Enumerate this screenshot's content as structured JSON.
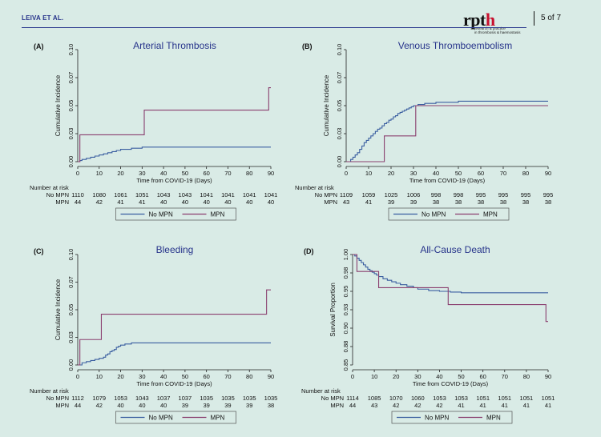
{
  "header": {
    "running_head": "LEIVA ET AL.",
    "page": "5 of 7",
    "logo_text": "rpth",
    "logo_sub": "research & practice in thrombosis & haemostasis"
  },
  "colors": {
    "no_mpn": "#3a5ea0",
    "mpn": "#8a3f6f",
    "panel_bg": "#d9ebe6"
  },
  "panels": {
    "a": {
      "letter": "(A)",
      "title": "Arterial Thrombosis",
      "ylabel": "Cumulative Incidence",
      "xlabel": "Time from COVID-19 (Days)",
      "yticks": [
        "0.00",
        "0.03",
        "0.05",
        "0.07",
        "0.10"
      ],
      "xticks": [
        "0",
        "10",
        "20",
        "30",
        "40",
        "50",
        "60",
        "70",
        "80",
        "90"
      ],
      "risk_header": "Number at risk",
      "row1_label": "No MPN",
      "row2_label": "MPN",
      "risk_no": [
        "1110",
        "1080",
        "1061",
        "1051",
        "1043",
        "1043",
        "1041",
        "1041",
        "1041",
        "1041"
      ],
      "risk_mpn": [
        "44",
        "42",
        "41",
        "41",
        "40",
        "40",
        "40",
        "40",
        "40",
        "40"
      ],
      "legend_no": "No MPN",
      "legend_mpn": "MPN"
    },
    "b": {
      "letter": "(B)",
      "title": "Venous Thromboembolism",
      "ylabel": "Cumulative Incidence",
      "xlabel": "Time from COVID-19 (Days)",
      "yticks": [
        "0.00",
        "0.03",
        "0.05",
        "0.07",
        "0.10"
      ],
      "xticks": [
        "0",
        "10",
        "20",
        "30",
        "40",
        "50",
        "60",
        "70",
        "80",
        "90"
      ],
      "risk_header": "Number at risk",
      "row1_label": "No MPN",
      "row2_label": "MPN",
      "risk_no": [
        "1109",
        "1059",
        "1025",
        "1006",
        "998",
        "998",
        "995",
        "995",
        "995",
        "995"
      ],
      "risk_mpn": [
        "43",
        "41",
        "39",
        "39",
        "38",
        "38",
        "38",
        "38",
        "38",
        "38"
      ],
      "legend_no": "No MPN",
      "legend_mpn": "MPN"
    },
    "c": {
      "letter": "(C)",
      "title": "Bleeding",
      "ylabel": "Cumulative Incidence",
      "xlabel": "Time from COVID-19 (Days)",
      "yticks": [
        "0.00",
        "0.03",
        "0.05",
        "0.07",
        "0.10"
      ],
      "xticks": [
        "0",
        "10",
        "20",
        "30",
        "40",
        "50",
        "60",
        "70",
        "80",
        "90"
      ],
      "risk_header": "Number at risk",
      "row1_label": "No MPN",
      "row2_label": "MPN",
      "risk_no": [
        "1112",
        "1079",
        "1053",
        "1043",
        "1037",
        "1037",
        "1035",
        "1035",
        "1035",
        "1035"
      ],
      "risk_mpn": [
        "44",
        "42",
        "40",
        "40",
        "40",
        "39",
        "39",
        "39",
        "39",
        "38"
      ],
      "legend_no": "No MPN",
      "legend_mpn": "MPN"
    },
    "d": {
      "letter": "(D)",
      "title": "All-Cause Death",
      "ylabel": "Survival Proportion",
      "xlabel": "Time from COVID-19 (Days)",
      "yticks": [
        "0.85",
        "0.88",
        "0.90",
        "0.93",
        "0.95",
        "0.98",
        "1.00"
      ],
      "xticks": [
        "0",
        "10",
        "20",
        "30",
        "40",
        "50",
        "60",
        "70",
        "80",
        "90"
      ],
      "risk_header": "Number at risk",
      "row1_label": "No MPN",
      "row2_label": "MPN",
      "risk_no": [
        "1114",
        "1085",
        "1070",
        "1060",
        "1053",
        "1053",
        "1051",
        "1051",
        "1051",
        "1051"
      ],
      "risk_mpn": [
        "44",
        "43",
        "42",
        "42",
        "42",
        "41",
        "41",
        "41",
        "41",
        "41"
      ],
      "legend_no": "No MPN",
      "legend_mpn": "MPN"
    }
  },
  "chart_data": [
    {
      "type": "line",
      "panel": "a",
      "title": "Arterial Thrombosis",
      "xlabel": "Time from COVID-19 (Days)",
      "ylabel": "Cumulative Incidence",
      "xlim": [
        0,
        90
      ],
      "ylim": [
        0,
        0.1
      ],
      "step": true,
      "series": [
        {
          "name": "No MPN",
          "x": [
            0,
            1,
            2,
            4,
            6,
            8,
            10,
            12,
            14,
            16,
            18,
            20,
            22,
            25,
            27,
            30,
            40,
            60,
            90
          ],
          "y": [
            0,
            0.001,
            0.002,
            0.003,
            0.004,
            0.005,
            0.006,
            0.007,
            0.008,
            0.009,
            0.01,
            0.011,
            0.011,
            0.012,
            0.012,
            0.013,
            0.013,
            0.013,
            0.013
          ]
        },
        {
          "name": "MPN",
          "x": [
            0,
            1,
            31,
            89,
            90
          ],
          "y": [
            0,
            0.024,
            0.046,
            0.066,
            0.066
          ]
        }
      ]
    },
    {
      "type": "line",
      "panel": "b",
      "title": "Venous Thromboembolism",
      "xlabel": "Time from COVID-19 (Days)",
      "ylabel": "Cumulative Incidence",
      "xlim": [
        0,
        90
      ],
      "ylim": [
        0,
        0.1
      ],
      "step": true,
      "series": [
        {
          "name": "No MPN",
          "x": [
            0,
            2,
            3,
            4,
            5,
            6,
            7,
            8,
            9,
            10,
            11,
            12,
            13,
            14,
            15,
            16,
            17,
            18,
            19,
            20,
            21,
            22,
            23,
            24,
            25,
            26,
            27,
            28,
            29,
            30,
            32,
            35,
            40,
            50,
            90
          ],
          "y": [
            0,
            0.002,
            0.004,
            0.006,
            0.008,
            0.011,
            0.014,
            0.017,
            0.019,
            0.021,
            0.023,
            0.025,
            0.027,
            0.029,
            0.03,
            0.032,
            0.034,
            0.035,
            0.037,
            0.038,
            0.04,
            0.041,
            0.043,
            0.044,
            0.045,
            0.046,
            0.047,
            0.048,
            0.049,
            0.05,
            0.051,
            0.052,
            0.053,
            0.054,
            0.054
          ]
        },
        {
          "name": "MPN",
          "x": [
            0,
            17,
            31,
            90
          ],
          "y": [
            0,
            0.023,
            0.05,
            0.05
          ]
        }
      ]
    },
    {
      "type": "line",
      "panel": "c",
      "title": "Bleeding",
      "xlabel": "Time from COVID-19 (Days)",
      "ylabel": "Cumulative Incidence",
      "xlim": [
        0,
        90
      ],
      "ylim": [
        0,
        0.1
      ],
      "step": true,
      "series": [
        {
          "name": "No MPN",
          "x": [
            0,
            2,
            4,
            6,
            8,
            10,
            12,
            13,
            14,
            15,
            16,
            17,
            18,
            19,
            20,
            22,
            25,
            30,
            60,
            90
          ],
          "y": [
            0,
            0.002,
            0.003,
            0.004,
            0.005,
            0.006,
            0.007,
            0.009,
            0.01,
            0.012,
            0.013,
            0.014,
            0.016,
            0.017,
            0.018,
            0.019,
            0.02,
            0.02,
            0.02,
            0.02
          ]
        },
        {
          "name": "MPN",
          "x": [
            0,
            1,
            11,
            88,
            90
          ],
          "y": [
            0,
            0.023,
            0.046,
            0.068,
            0.068
          ]
        }
      ]
    },
    {
      "type": "line",
      "panel": "d",
      "title": "All-Cause Death",
      "xlabel": "Time from COVID-19 (Days)",
      "ylabel": "Survival Proportion",
      "xlim": [
        0,
        90
      ],
      "ylim": [
        0.85,
        1.0
      ],
      "step": true,
      "series": [
        {
          "name": "No MPN",
          "x": [
            0,
            1,
            2,
            3,
            4,
            5,
            6,
            7,
            8,
            9,
            10,
            11,
            12,
            14,
            16,
            18,
            20,
            22,
            25,
            28,
            30,
            35,
            40,
            45,
            50,
            60,
            90
          ],
          "y": [
            1.0,
            0.998,
            0.995,
            0.992,
            0.989,
            0.986,
            0.983,
            0.98,
            0.978,
            0.976,
            0.974,
            0.972,
            0.97,
            0.967,
            0.965,
            0.963,
            0.961,
            0.959,
            0.957,
            0.955,
            0.953,
            0.951,
            0.95,
            0.949,
            0.948,
            0.948,
            0.948
          ]
        },
        {
          "name": "MPN",
          "x": [
            0,
            2,
            12,
            44,
            89,
            90
          ],
          "y": [
            1.0,
            0.977,
            0.955,
            0.932,
            0.909,
            0.909
          ]
        }
      ]
    }
  ]
}
